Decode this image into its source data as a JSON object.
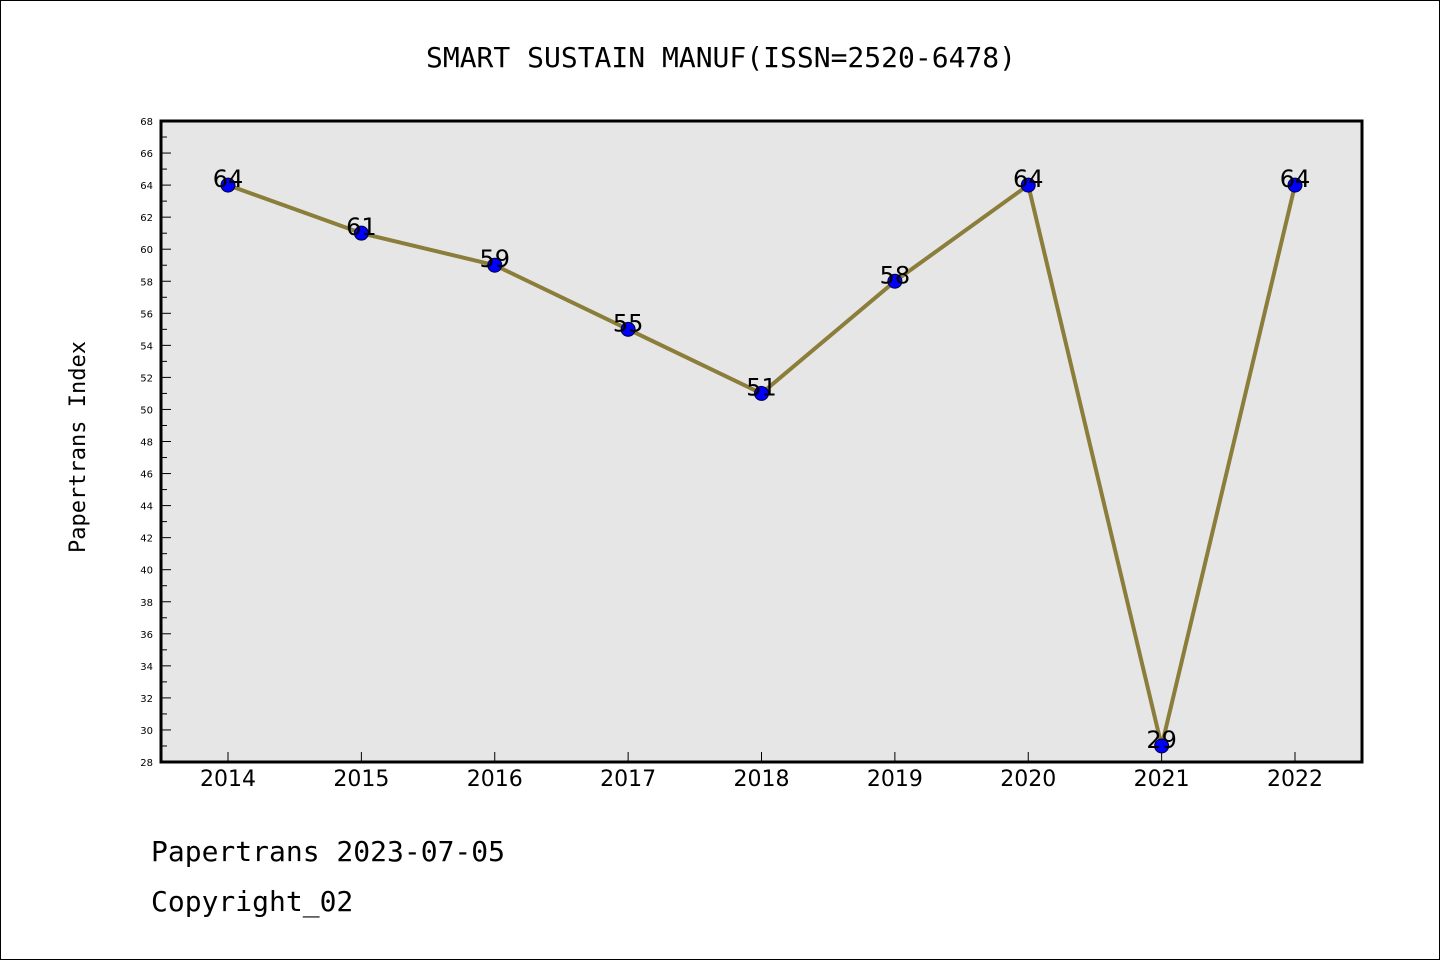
{
  "chart_data": {
    "type": "line",
    "title": "SMART SUSTAIN MANUF(ISSN=2520-6478)",
    "xlabel": "",
    "ylabel": "Papertrans Index",
    "categories": [
      "2014",
      "2015",
      "2016",
      "2017",
      "2018",
      "2019",
      "2020",
      "2021",
      "2022"
    ],
    "values": [
      64,
      61,
      59,
      55,
      51,
      58,
      64,
      29,
      64
    ],
    "data_labels": [
      "64",
      "61",
      "59",
      "55",
      "51",
      "58",
      "64",
      "29",
      "64"
    ],
    "ylim": [
      28,
      68
    ],
    "yticks": [
      "28",
      "30",
      "32",
      "34",
      "36",
      "38",
      "40",
      "42",
      "44",
      "46",
      "48",
      "50",
      "52",
      "54",
      "56",
      "58",
      "60",
      "62",
      "64",
      "66",
      "68"
    ],
    "grid": false,
    "legend": "none",
    "line_color": "#8b7d3a",
    "marker_color": "#0000ff",
    "plot_background": "#e6e6e6"
  },
  "footer": {
    "line1": "Papertrans 2023-07-05",
    "line2": "Copyright_02"
  }
}
